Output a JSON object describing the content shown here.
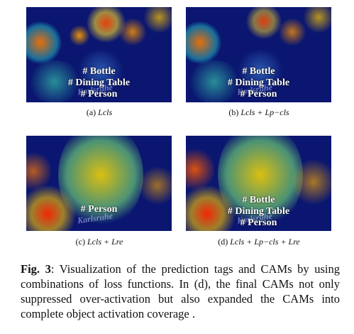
{
  "panels": [
    {
      "id": "a",
      "tags": [
        "# Bottle",
        "# Dining Table",
        "# Person"
      ],
      "watermark": "Karlsruhe",
      "caption_prefix": "(a)",
      "caption_formula": "Lcls"
    },
    {
      "id": "b",
      "tags": [
        "# Bottle",
        "# Dining Table",
        "# Person"
      ],
      "watermark": "Karlsruhe",
      "caption_prefix": "(b)",
      "caption_formula": "Lcls + Lp−cls"
    },
    {
      "id": "c",
      "tags": [
        "# Person"
      ],
      "watermark": "Karlsruhe",
      "caption_prefix": "(c)",
      "caption_formula": "Lcls + Lre"
    },
    {
      "id": "d",
      "tags": [
        "# Bottle",
        "# Dining Table",
        "# Person"
      ],
      "watermark": "Karlsruhe",
      "caption_prefix": "(d)",
      "caption_formula": "Lcls + Lp−cls + Lre"
    }
  ],
  "figure_caption": {
    "label": "Fig. 3",
    "text": ": Visualization of the prediction tags and CAMs by using combinations of loss functions. In (d), the final CAMs not only suppressed over-activation but also expanded the CAMs into complete object activation coverage ."
  },
  "colors": {
    "heatmap_background": "#0a1670",
    "tag_text": "#ffffff"
  }
}
